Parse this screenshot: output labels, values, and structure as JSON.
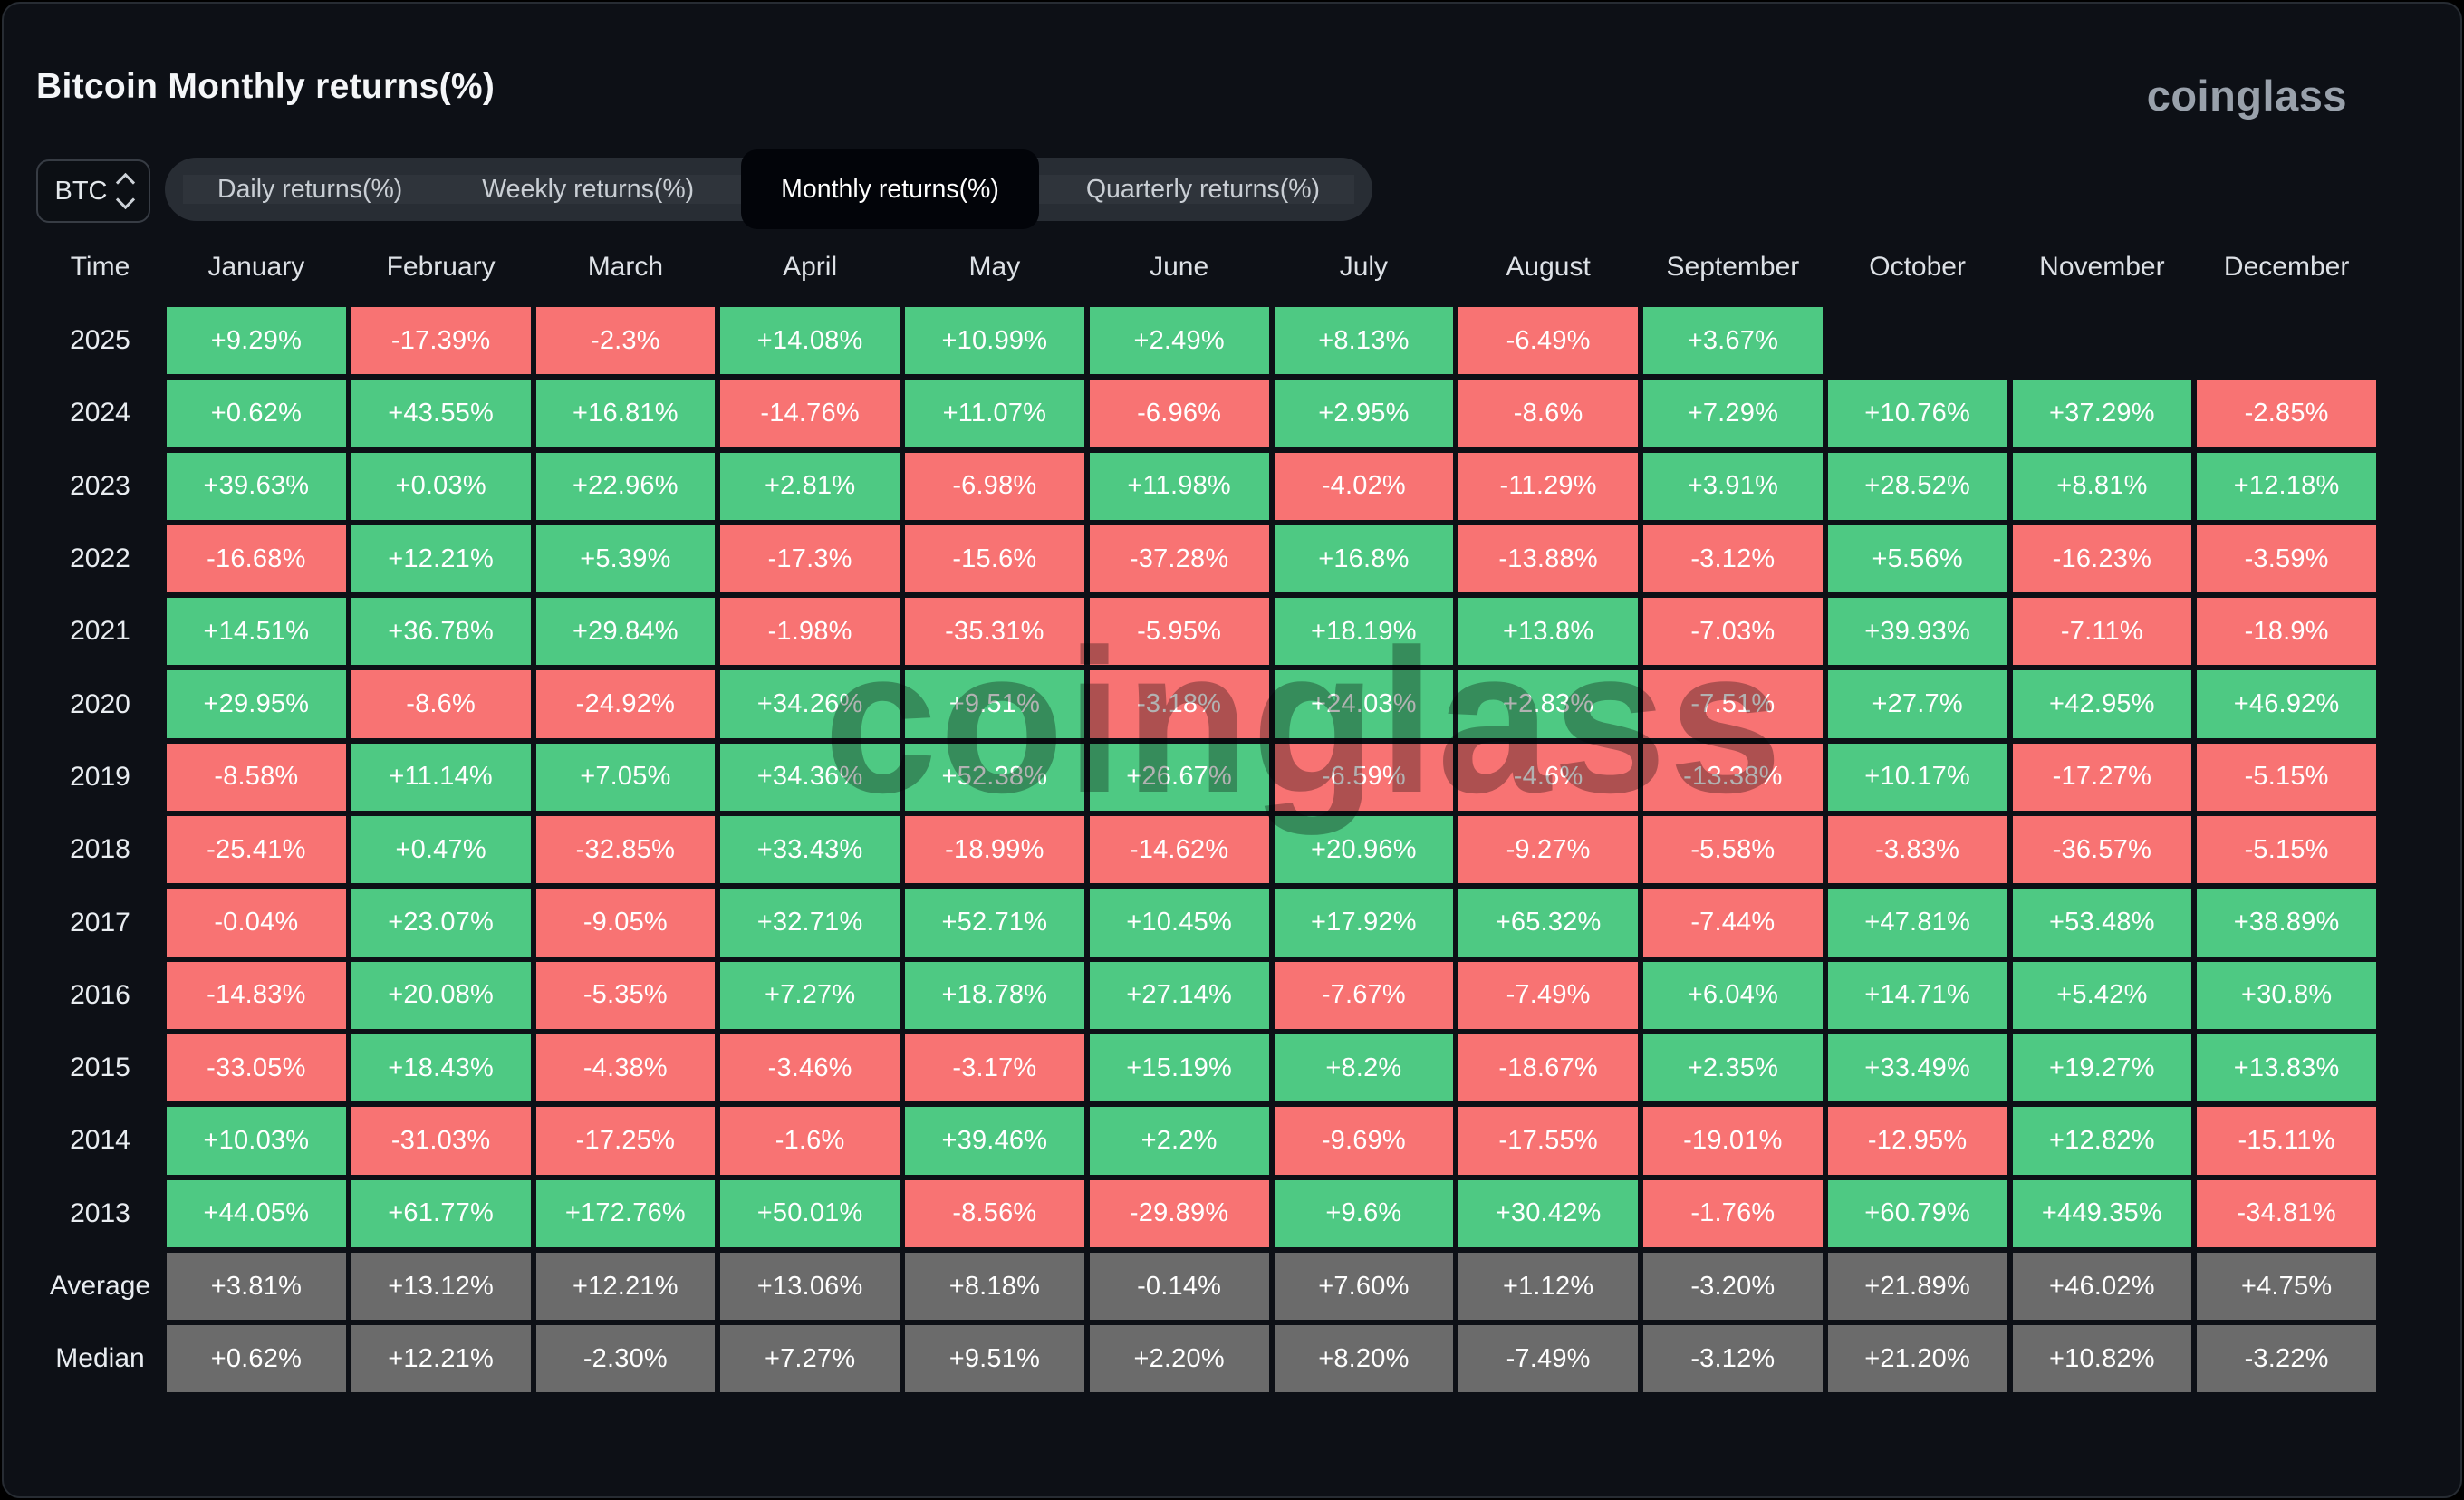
{
  "header": {
    "title": "Bitcoin Monthly returns(%)",
    "logo": "coinglass"
  },
  "controls": {
    "symbol_select": {
      "value": "BTC",
      "icon": "updown-chevrons-icon"
    },
    "tabs": [
      {
        "label": "Daily returns(%)",
        "active": false
      },
      {
        "label": "Weekly returns(%)",
        "active": false
      },
      {
        "label": "Monthly returns(%)",
        "active": true
      },
      {
        "label": "Quarterly returns(%)",
        "active": false
      }
    ]
  },
  "watermark": "coinglass",
  "colors": {
    "positive": "#4ec983",
    "negative": "#f87373",
    "summary": "#6b6b6b",
    "background": "#0d1016",
    "selected_tab": "#020409"
  },
  "chart_data": {
    "type": "heatmap",
    "title": "Bitcoin Monthly returns(%)",
    "unit": "%",
    "legend": "none",
    "columns": [
      "Time",
      "January",
      "February",
      "March",
      "April",
      "May",
      "June",
      "July",
      "August",
      "September",
      "October",
      "November",
      "December"
    ],
    "rows": [
      {
        "label": "2025",
        "summary": false,
        "values": [
          "+9.29%",
          "-17.39%",
          "-2.3%",
          "+14.08%",
          "+10.99%",
          "+2.49%",
          "+8.13%",
          "-6.49%",
          "+3.67%",
          null,
          null,
          null
        ]
      },
      {
        "label": "2024",
        "summary": false,
        "values": [
          "+0.62%",
          "+43.55%",
          "+16.81%",
          "-14.76%",
          "+11.07%",
          "-6.96%",
          "+2.95%",
          "-8.6%",
          "+7.29%",
          "+10.76%",
          "+37.29%",
          "-2.85%"
        ]
      },
      {
        "label": "2023",
        "summary": false,
        "values": [
          "+39.63%",
          "+0.03%",
          "+22.96%",
          "+2.81%",
          "-6.98%",
          "+11.98%",
          "-4.02%",
          "-11.29%",
          "+3.91%",
          "+28.52%",
          "+8.81%",
          "+12.18%"
        ]
      },
      {
        "label": "2022",
        "summary": false,
        "values": [
          "-16.68%",
          "+12.21%",
          "+5.39%",
          "-17.3%",
          "-15.6%",
          "-37.28%",
          "+16.8%",
          "-13.88%",
          "-3.12%",
          "+5.56%",
          "-16.23%",
          "-3.59%"
        ]
      },
      {
        "label": "2021",
        "summary": false,
        "values": [
          "+14.51%",
          "+36.78%",
          "+29.84%",
          "-1.98%",
          "-35.31%",
          "-5.95%",
          "+18.19%",
          "+13.8%",
          "-7.03%",
          "+39.93%",
          "-7.11%",
          "-18.9%"
        ]
      },
      {
        "label": "2020",
        "summary": false,
        "values": [
          "+29.95%",
          "-8.6%",
          "-24.92%",
          "+34.26%",
          "+9.51%",
          "-3.18%",
          "+24.03%",
          "+2.83%",
          "-7.51%",
          "+27.7%",
          "+42.95%",
          "+46.92%"
        ]
      },
      {
        "label": "2019",
        "summary": false,
        "values": [
          "-8.58%",
          "+11.14%",
          "+7.05%",
          "+34.36%",
          "+52.38%",
          "+26.67%",
          "-6.59%",
          "-4.6%",
          "-13.38%",
          "+10.17%",
          "-17.27%",
          "-5.15%"
        ]
      },
      {
        "label": "2018",
        "summary": false,
        "values": [
          "-25.41%",
          "+0.47%",
          "-32.85%",
          "+33.43%",
          "-18.99%",
          "-14.62%",
          "+20.96%",
          "-9.27%",
          "-5.58%",
          "-3.83%",
          "-36.57%",
          "-5.15%"
        ]
      },
      {
        "label": "2017",
        "summary": false,
        "values": [
          "-0.04%",
          "+23.07%",
          "-9.05%",
          "+32.71%",
          "+52.71%",
          "+10.45%",
          "+17.92%",
          "+65.32%",
          "-7.44%",
          "+47.81%",
          "+53.48%",
          "+38.89%"
        ]
      },
      {
        "label": "2016",
        "summary": false,
        "values": [
          "-14.83%",
          "+20.08%",
          "-5.35%",
          "+7.27%",
          "+18.78%",
          "+27.14%",
          "-7.67%",
          "-7.49%",
          "+6.04%",
          "+14.71%",
          "+5.42%",
          "+30.8%"
        ]
      },
      {
        "label": "2015",
        "summary": false,
        "values": [
          "-33.05%",
          "+18.43%",
          "-4.38%",
          "-3.46%",
          "-3.17%",
          "+15.19%",
          "+8.2%",
          "-18.67%",
          "+2.35%",
          "+33.49%",
          "+19.27%",
          "+13.83%"
        ]
      },
      {
        "label": "2014",
        "summary": false,
        "values": [
          "+10.03%",
          "-31.03%",
          "-17.25%",
          "-1.6%",
          "+39.46%",
          "+2.2%",
          "-9.69%",
          "-17.55%",
          "-19.01%",
          "-12.95%",
          "+12.82%",
          "-15.11%"
        ]
      },
      {
        "label": "2013",
        "summary": false,
        "values": [
          "+44.05%",
          "+61.77%",
          "+172.76%",
          "+50.01%",
          "-8.56%",
          "-29.89%",
          "+9.6%",
          "+30.42%",
          "-1.76%",
          "+60.79%",
          "+449.35%",
          "-34.81%"
        ]
      },
      {
        "label": "Average",
        "summary": true,
        "values": [
          "+3.81%",
          "+13.12%",
          "+12.21%",
          "+13.06%",
          "+8.18%",
          "-0.14%",
          "+7.60%",
          "+1.12%",
          "-3.20%",
          "+21.89%",
          "+46.02%",
          "+4.75%"
        ]
      },
      {
        "label": "Median",
        "summary": true,
        "values": [
          "+0.62%",
          "+12.21%",
          "-2.30%",
          "+7.27%",
          "+9.51%",
          "+2.20%",
          "+8.20%",
          "-7.49%",
          "-3.12%",
          "+21.20%",
          "+10.82%",
          "-3.22%"
        ]
      }
    ]
  }
}
